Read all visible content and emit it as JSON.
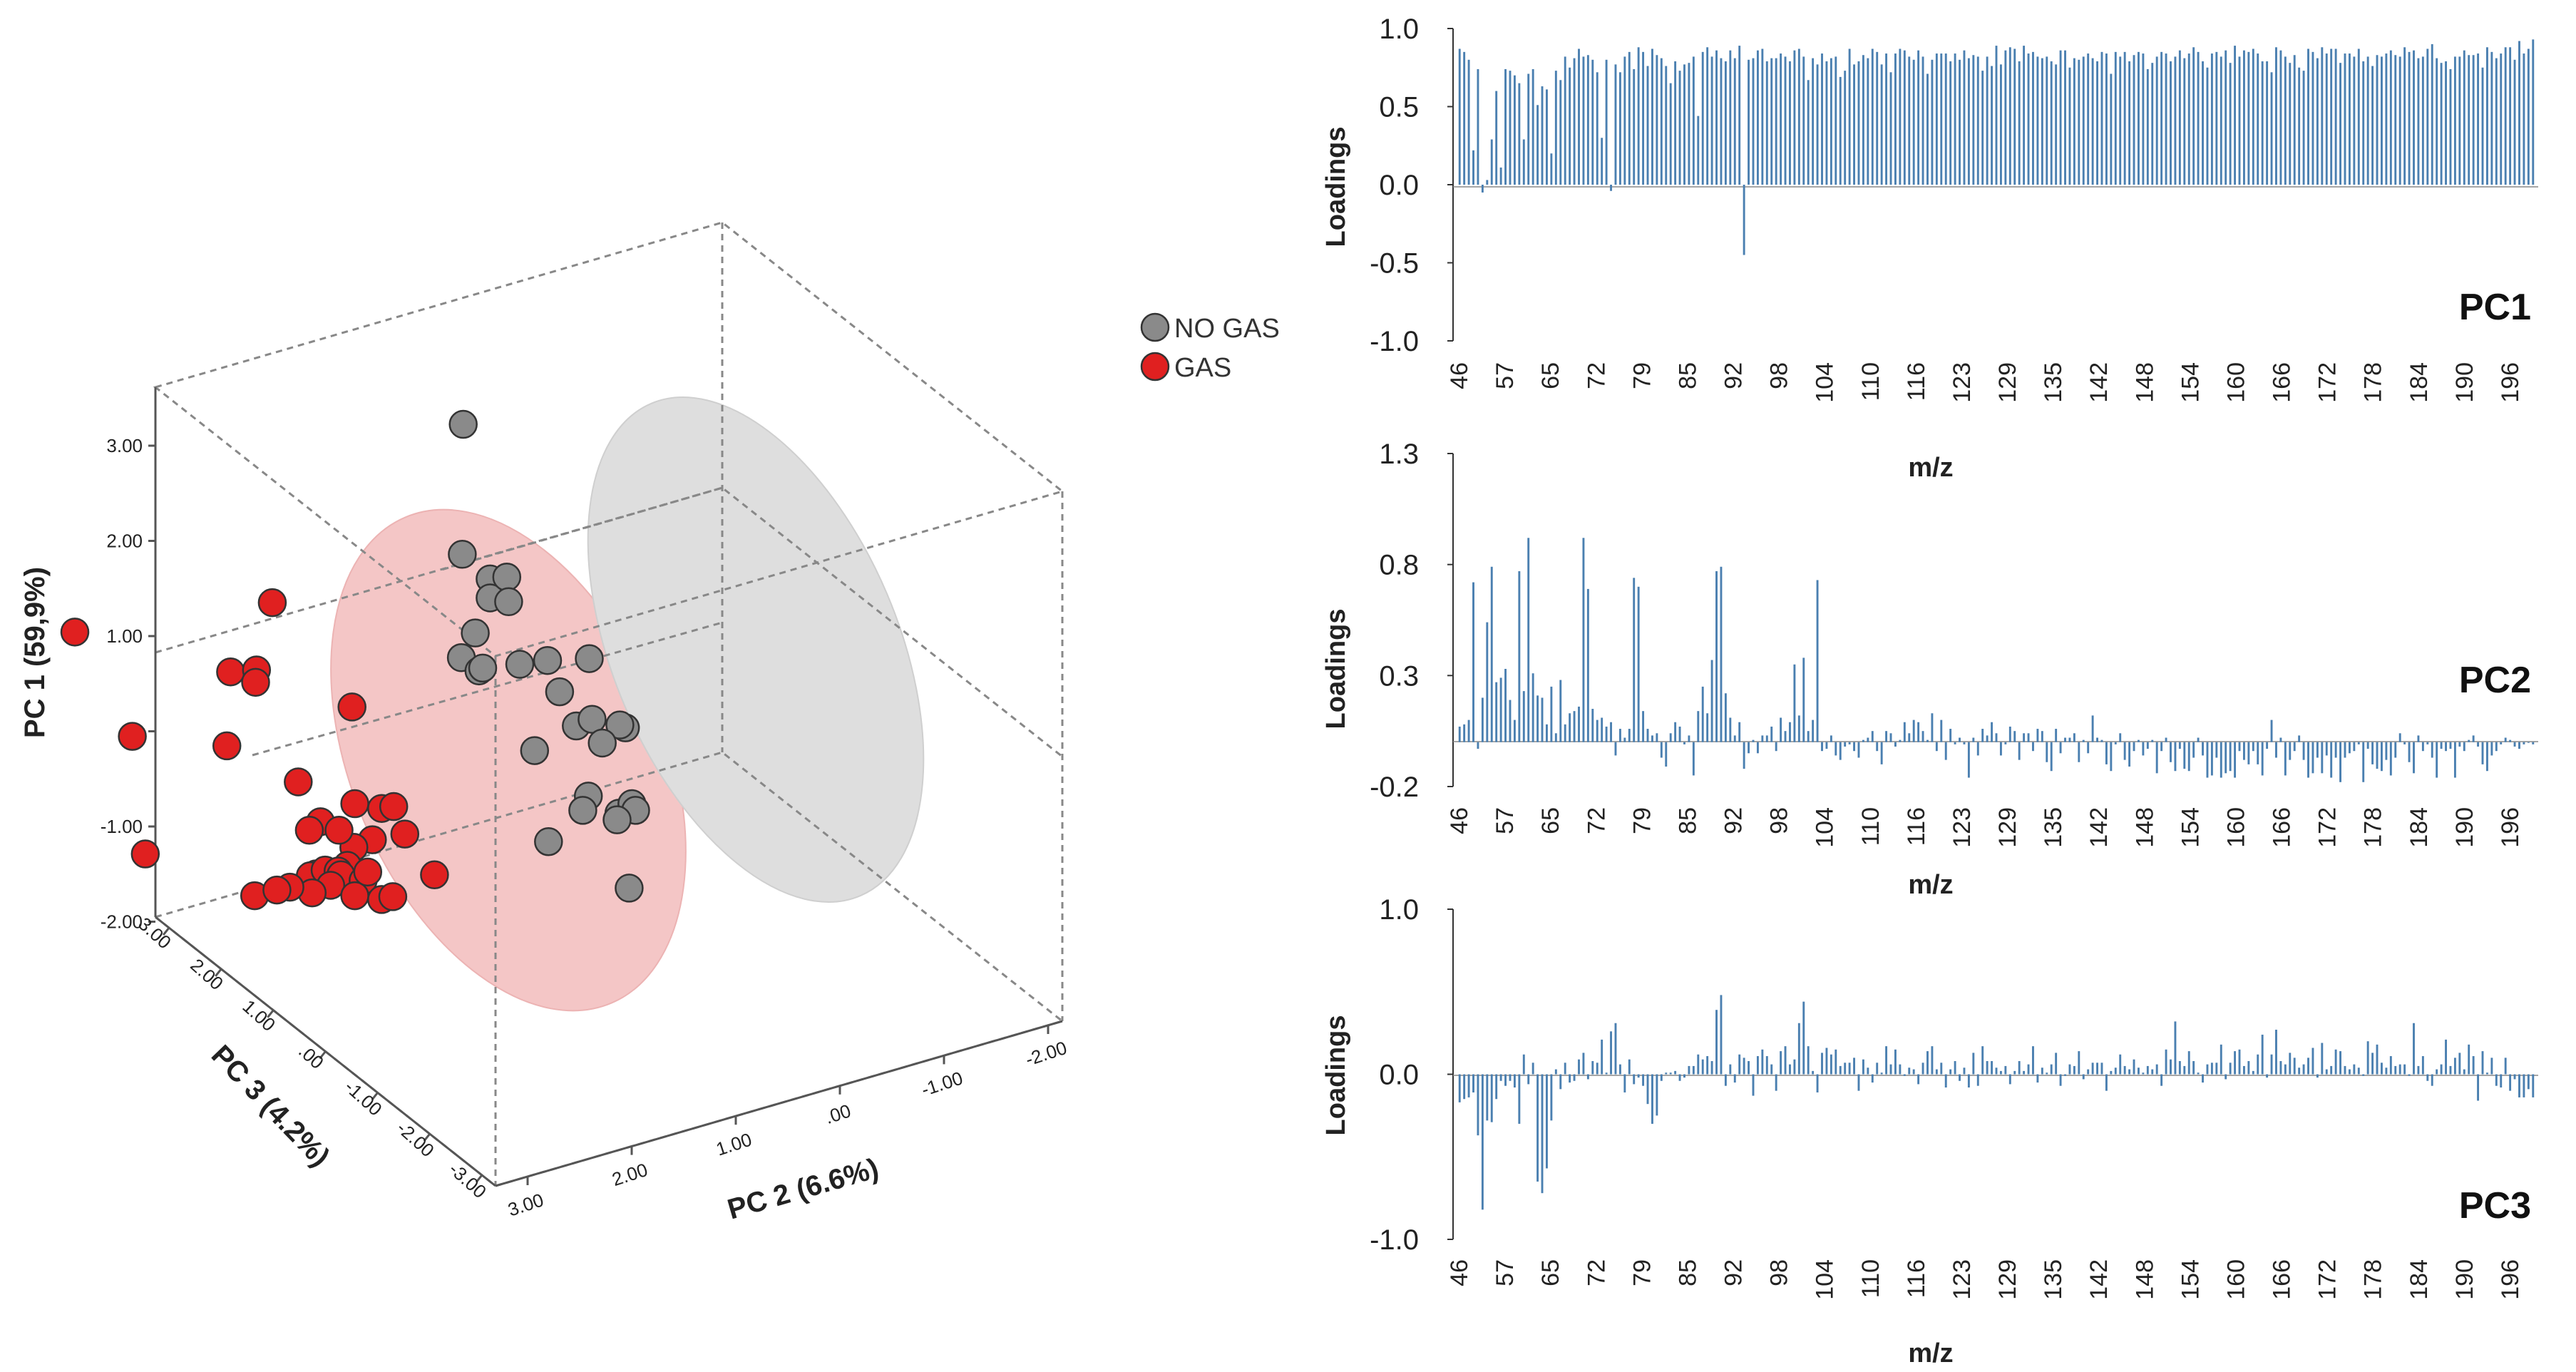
{
  "colors": {
    "no_gas": "#8a8a8a",
    "gas": "#e02020",
    "no_gas_ellipse": "#d9d9d9",
    "gas_ellipse": "#f4c6c6",
    "bar": "#4a7fb0"
  },
  "chart_data": [
    {
      "type": "scatter",
      "projection": "3d",
      "axes": {
        "pc1": {
          "label": "PC 1 (59,9%)",
          "ticks": [
            "3.00",
            "2.00",
            "1.00",
            ".00",
            "-1.00",
            "-2.00"
          ],
          "range": [
            -2,
            3
          ]
        },
        "pc2": {
          "label": "PC 2 (6.6%)",
          "ticks": [
            "3.00",
            "2.00",
            "1.00",
            ".00",
            "-1.00",
            "-2.00"
          ],
          "range": [
            -2,
            3
          ]
        },
        "pc3": {
          "label": "PC 3 (4.2%)",
          "ticks": [
            "3.00",
            "2.00",
            "1.00",
            ".00",
            "-1.00",
            "-2.00",
            "-3.00"
          ],
          "range": [
            -3,
            3
          ]
        }
      },
      "legend": [
        {
          "label": "NO GAS",
          "color": "#8a8a8a"
        },
        {
          "label": "GAS",
          "color": "#e02020"
        }
      ],
      "series": [
        {
          "name": "NO GAS",
          "screen_values": [
            [
              0.69,
              3.18
            ],
            [
              0.68,
              1.81
            ],
            [
              0.98,
              1.55
            ],
            [
              0.98,
              1.35
            ],
            [
              1.16,
              1.57
            ],
            [
              1.18,
              1.31
            ],
            [
              0.82,
              0.98
            ],
            [
              0.67,
              0.72
            ],
            [
              0.86,
              0.58
            ],
            [
              0.9,
              0.61
            ],
            [
              1.3,
              0.65
            ],
            [
              1.6,
              0.69
            ],
            [
              2.05,
              0.71
            ],
            [
              1.73,
              0.36
            ],
            [
              1.91,
              0.0
            ],
            [
              2.08,
              0.07
            ],
            [
              2.44,
              -0.02
            ],
            [
              2.38,
              0.01
            ],
            [
              2.19,
              -0.18
            ],
            [
              1.46,
              -0.26
            ],
            [
              2.04,
              -0.74
            ],
            [
              1.98,
              -0.89
            ],
            [
              2.37,
              -0.92
            ],
            [
              2.51,
              -0.82
            ],
            [
              2.55,
              -0.89
            ],
            [
              2.35,
              -0.99
            ],
            [
              1.61,
              -1.22
            ],
            [
              2.48,
              -1.71
            ]
          ]
        },
        {
          "name": "GAS",
          "screen_values": [
            [
              -3.5,
              0.99
            ],
            [
              -1.37,
              1.3
            ],
            [
              -1.82,
              0.57
            ],
            [
              -1.54,
              0.59
            ],
            [
              -1.55,
              0.46
            ],
            [
              -0.51,
              0.2
            ],
            [
              -2.88,
              -0.11
            ],
            [
              -1.86,
              -0.21
            ],
            [
              -1.09,
              -0.59
            ],
            [
              -2.74,
              -1.35
            ],
            [
              -0.85,
              -1.01
            ],
            [
              -0.48,
              -0.82
            ],
            [
              -0.19,
              -0.87
            ],
            [
              -0.06,
              -0.85
            ],
            [
              -0.29,
              -1.2
            ],
            [
              -0.49,
              -1.28
            ],
            [
              0.06,
              -1.14
            ],
            [
              -0.65,
              -1.1
            ],
            [
              -0.97,
              -1.1
            ],
            [
              -0.56,
              -1.47
            ],
            [
              -0.9,
              -1.56
            ],
            [
              -0.96,
              -1.58
            ],
            [
              -0.8,
              -1.52
            ],
            [
              -0.66,
              -1.53
            ],
            [
              -0.62,
              -1.62
            ],
            [
              -0.63,
              -1.57
            ],
            [
              -0.74,
              -1.68
            ],
            [
              -0.39,
              -1.63
            ],
            [
              -0.48,
              -1.79
            ],
            [
              -0.94,
              -1.76
            ],
            [
              -1.56,
              -1.79
            ],
            [
              -0.34,
              -1.54
            ],
            [
              -0.19,
              -1.83
            ],
            [
              -0.07,
              -1.8
            ],
            [
              0.38,
              -1.57
            ],
            [
              -1.18,
              -1.7
            ],
            [
              -1.32,
              -1.73
            ]
          ]
        }
      ]
    },
    {
      "type": "bar",
      "title": "PC1",
      "xlabel": "m/z",
      "ylabel": "Loadings",
      "ylim": [
        -1.0,
        1.0
      ],
      "yticks": [
        "1.0",
        "0.5",
        "0.0",
        "-0.5",
        "-1.0"
      ],
      "xticks": [
        "46",
        "57",
        "65",
        "72",
        "79",
        "85",
        "92",
        "98",
        "104",
        "110",
        "116",
        "123",
        "129",
        "135",
        "142",
        "148",
        "154",
        "160",
        "166",
        "172",
        "178",
        "184",
        "190",
        "196"
      ],
      "x_start": 46,
      "values": [
        0.87,
        0.85,
        0.8,
        0.22,
        0.74,
        -0.05,
        0.03,
        0.29,
        0.6,
        0.11,
        0.74,
        0.73,
        0.7,
        0.65,
        0.29,
        0.71,
        0.74,
        0.51,
        0.63,
        0.61,
        0.2,
        0.73,
        0.67,
        0.82,
        0.75,
        0.81,
        0.87,
        0.82,
        0.83,
        0.8,
        0.72,
        0.3,
        0.8,
        -0.04,
        0.77,
        0.72,
        0.82,
        0.85,
        0.74,
        0.88,
        0.85,
        0.76,
        0.87,
        0.83,
        0.81,
        0.76,
        0.65,
        0.79,
        0.73,
        0.77,
        0.78,
        0.82,
        0.44,
        0.85,
        0.88,
        0.82,
        0.86,
        0.81,
        0.79,
        0.86,
        0.81,
        0.89,
        -0.45,
        0.8,
        0.81,
        0.86,
        0.87,
        0.79,
        0.81,
        0.81,
        0.84,
        0.82,
        0.79,
        0.86,
        0.87,
        0.82,
        0.67,
        0.81,
        0.77,
        0.84,
        0.79,
        0.81,
        0.82,
        0.69,
        0.73,
        0.87,
        0.77,
        0.79,
        0.83,
        0.81,
        0.87,
        0.85,
        0.77,
        0.84,
        0.72,
        0.84,
        0.87,
        0.86,
        0.82,
        0.8,
        0.86,
        0.82,
        0.71,
        0.8,
        0.84,
        0.84,
        0.84,
        0.79,
        0.84,
        0.8,
        0.86,
        0.81,
        0.83,
        0.82,
        0.73,
        0.82,
        0.76,
        0.89,
        0.77,
        0.86,
        0.88,
        0.87,
        0.79,
        0.89,
        0.84,
        0.85,
        0.82,
        0.81,
        0.82,
        0.79,
        0.77,
        0.86,
        0.86,
        0.75,
        0.81,
        0.8,
        0.82,
        0.84,
        0.81,
        0.79,
        0.85,
        0.84,
        0.71,
        0.85,
        0.82,
        0.85,
        0.79,
        0.83,
        0.85,
        0.84,
        0.74,
        0.78,
        0.82,
        0.85,
        0.84,
        0.79,
        0.82,
        0.86,
        0.81,
        0.84,
        0.88,
        0.85,
        0.79,
        0.75,
        0.84,
        0.85,
        0.82,
        0.86,
        0.78,
        0.89,
        0.82,
        0.86,
        0.85,
        0.87,
        0.84,
        0.79,
        0.79,
        0.72,
        0.88,
        0.86,
        0.82,
        0.78,
        0.83,
        0.75,
        0.73,
        0.87,
        0.85,
        0.81,
        0.88,
        0.84,
        0.87,
        0.87,
        0.78,
        0.84,
        0.84,
        0.82,
        0.87,
        0.79,
        0.82,
        0.76,
        0.83,
        0.82,
        0.84,
        0.86,
        0.83,
        0.82,
        0.88,
        0.85,
        0.86,
        0.81,
        0.82,
        0.87,
        0.9,
        0.81,
        0.78,
        0.79,
        0.74,
        0.82,
        0.82,
        0.86,
        0.83,
        0.83,
        0.84,
        0.75,
        0.88,
        0.85,
        0.81,
        0.84,
        0.88,
        0.88,
        0.8,
        0.92,
        0.84,
        0.87,
        0.93
      ]
    },
    {
      "type": "bar",
      "title": "PC2",
      "xlabel": "m/z",
      "ylabel": "Loadings",
      "ylim": [
        -0.2,
        1.3
      ],
      "yticks": [
        "1.3",
        "0.8",
        "0.3",
        "-0.2"
      ],
      "xticks": [
        "46",
        "57",
        "65",
        "72",
        "79",
        "85",
        "92",
        "98",
        "104",
        "110",
        "116",
        "123",
        "129",
        "135",
        "142",
        "148",
        "154",
        "160",
        "166",
        "172",
        "178",
        "184",
        "190",
        "196"
      ],
      "x_start": 46,
      "values": [
        0.07,
        0.08,
        0.1,
        0.72,
        -0.03,
        0.2,
        0.54,
        0.79,
        0.27,
        0.29,
        0.33,
        0.19,
        0.1,
        0.77,
        0.23,
        0.92,
        0.31,
        0.21,
        0.2,
        0.08,
        0.25,
        0.04,
        0.28,
        0.08,
        0.13,
        0.14,
        0.16,
        0.92,
        0.69,
        0.15,
        0.1,
        0.11,
        0.07,
        0.09,
        -0.06,
        0.06,
        0.02,
        0.06,
        0.74,
        0.7,
        0.14,
        0.06,
        0.03,
        0.04,
        -0.07,
        -0.11,
        0.04,
        0.09,
        0.07,
        -0.01,
        0.03,
        -0.15,
        0.14,
        0.25,
        0.13,
        0.37,
        0.77,
        0.79,
        0.22,
        0.11,
        0.03,
        0.09,
        -0.12,
        -0.05,
        0.01,
        -0.05,
        0.03,
        0.03,
        0.07,
        -0.04,
        0.11,
        0.05,
        0.09,
        0.35,
        0.12,
        0.38,
        0.05,
        0.1,
        0.73,
        -0.04,
        -0.03,
        0.03,
        -0.06,
        -0.08,
        -0.02,
        -0.01,
        -0.04,
        -0.07,
        0.01,
        0.02,
        0.05,
        -0.04,
        -0.1,
        0.05,
        0.04,
        -0.02,
        0.01,
        0.09,
        0.04,
        0.1,
        0.09,
        0.05,
        0.01,
        0.13,
        -0.04,
        0.1,
        -0.08,
        0.06,
        -0.01,
        0.02,
        -0.01,
        -0.16,
        0.02,
        -0.06,
        0.06,
        0.03,
        0.09,
        0.04,
        -0.06,
        -0.01,
        0.07,
        0.05,
        -0.08,
        0.04,
        0.04,
        -0.04,
        0.06,
        0.05,
        -0.09,
        -0.13,
        0.06,
        -0.05,
        0.02,
        0.02,
        0.04,
        -0.09,
        0.01,
        -0.05,
        0.12,
        0.02,
        0.01,
        -0.1,
        -0.13,
        -0.01,
        0.04,
        -0.08,
        -0.11,
        -0.04,
        0.01,
        -0.06,
        -0.03,
        0.01,
        -0.14,
        -0.04,
        0.02,
        -0.09,
        -0.13,
        -0.03,
        -0.12,
        -0.13,
        -0.07,
        0.02,
        -0.06,
        -0.16,
        -0.15,
        -0.07,
        -0.16,
        -0.14,
        -0.13,
        -0.16,
        -0.04,
        -0.08,
        -0.1,
        -0.04,
        -0.1,
        -0.15,
        -0.03,
        0.1,
        -0.07,
        0.02,
        -0.15,
        -0.08,
        -0.04,
        0.03,
        -0.08,
        -0.16,
        -0.14,
        -0.07,
        -0.14,
        -0.06,
        -0.16,
        -0.07,
        -0.18,
        -0.07,
        -0.05,
        -0.04,
        -0.01,
        -0.18,
        -0.03,
        -0.1,
        -0.12,
        -0.13,
        -0.08,
        -0.15,
        -0.07,
        0.04,
        -0.01,
        -0.09,
        -0.14,
        0.03,
        -0.04,
        -0.01,
        -0.07,
        -0.16,
        -0.03,
        -0.04,
        -0.03,
        -0.16,
        -0.02,
        -0.04,
        0.01,
        0.03,
        -0.02,
        -0.1,
        -0.13,
        -0.06,
        -0.04,
        -0.01,
        0.02,
        0.01,
        -0.02,
        -0.03,
        -0.01,
        0.0,
        -0.01
      ]
    },
    {
      "type": "bar",
      "title": "PC3",
      "xlabel": "m/z",
      "ylabel": "Loadings",
      "ylim": [
        -1.0,
        1.0
      ],
      "yticks": [
        "1.0",
        "0.0",
        "-1.0"
      ],
      "xticks": [
        "46",
        "57",
        "65",
        "72",
        "79",
        "85",
        "92",
        "98",
        "104",
        "110",
        "116",
        "123",
        "129",
        "135",
        "142",
        "148",
        "154",
        "160",
        "166",
        "172",
        "178",
        "184",
        "190",
        "196"
      ],
      "x_start": 46,
      "values": [
        -0.17,
        -0.15,
        -0.14,
        -0.11,
        -0.37,
        -0.82,
        -0.28,
        -0.29,
        -0.15,
        -0.04,
        -0.07,
        -0.04,
        -0.08,
        -0.3,
        0.12,
        -0.06,
        0.07,
        -0.65,
        -0.72,
        -0.57,
        -0.28,
        0.03,
        -0.09,
        0.07,
        -0.05,
        -0.04,
        0.09,
        0.13,
        -0.03,
        0.08,
        0.07,
        0.21,
        0.01,
        0.26,
        0.31,
        0.06,
        -0.11,
        0.09,
        -0.06,
        -0.02,
        -0.07,
        -0.18,
        -0.3,
        -0.25,
        -0.04,
        0.01,
        0.01,
        0.02,
        -0.04,
        -0.02,
        0.05,
        0.05,
        0.12,
        0.09,
        0.11,
        0.08,
        0.39,
        0.48,
        -0.07,
        0.06,
        -0.05,
        0.12,
        0.1,
        0.08,
        -0.13,
        0.11,
        0.15,
        0.11,
        0.06,
        -0.1,
        0.14,
        0.17,
        0.06,
        0.09,
        0.31,
        0.44,
        0.17,
        0.02,
        -0.11,
        0.13,
        0.16,
        0.12,
        0.15,
        0.05,
        0.07,
        0.07,
        0.1,
        -0.1,
        0.09,
        0.04,
        -0.05,
        0.07,
        0.01,
        0.17,
        0.06,
        0.15,
        0.06,
        -0.01,
        0.04,
        0.03,
        -0.06,
        0.07,
        0.14,
        0.17,
        0.03,
        0.07,
        -0.08,
        0.03,
        0.08,
        -0.04,
        0.04,
        -0.08,
        0.13,
        -0.07,
        0.17,
        0.08,
        0.08,
        0.04,
        0.02,
        0.05,
        -0.06,
        0.02,
        0.08,
        0.02,
        0.06,
        0.17,
        -0.05,
        0.04,
        0.01,
        0.06,
        0.13,
        -0.07,
        -0.01,
        0.06,
        0.05,
        0.14,
        -0.03,
        0.03,
        0.07,
        0.07,
        0.07,
        -0.1,
        0.02,
        0.04,
        0.12,
        0.05,
        0.03,
        0.09,
        0.04,
        0.01,
        0.05,
        0.03,
        0.06,
        -0.07,
        0.15,
        0.09,
        0.32,
        0.08,
        0.05,
        0.14,
        0.08,
        0.01,
        -0.05,
        0.06,
        0.07,
        0.07,
        0.18,
        -0.03,
        0.07,
        0.14,
        0.15,
        0.05,
        0.08,
        0.02,
        0.12,
        0.24,
        -0.02,
        0.12,
        0.27,
        0.08,
        0.06,
        0.13,
        0.1,
        0.04,
        0.06,
        0.1,
        0.16,
        -0.02,
        0.19,
        0.03,
        0.05,
        0.15,
        0.14,
        0.05,
        0.03,
        0.06,
        0.04,
        -0.01,
        0.2,
        0.13,
        0.18,
        0.07,
        0.04,
        0.11,
        0.05,
        0.06,
        0.06,
        -0.01,
        0.31,
        0.05,
        0.11,
        -0.04,
        -0.07,
        0.03,
        0.06,
        0.21,
        0.05,
        0.1,
        0.13,
        0.03,
        0.18,
        0.11,
        -0.16,
        0.14,
        0.01,
        0.1,
        -0.07,
        -0.08,
        0.1,
        -0.1,
        -0.03,
        -0.14,
        -0.14,
        -0.09,
        -0.14
      ]
    }
  ]
}
